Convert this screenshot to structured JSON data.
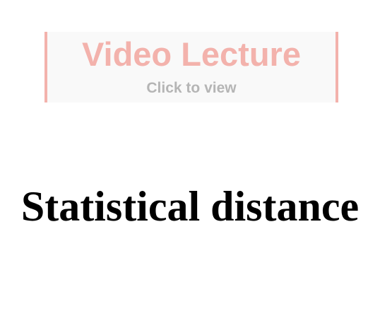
{
  "video_banner": {
    "title": "Video Lecture",
    "subtitle": "Click to view",
    "accent_color": "#f3b2ac",
    "subtitle_color": "#b5b5b5",
    "background_color": "#f9f9f9"
  },
  "document": {
    "title": "Statistical distance"
  }
}
